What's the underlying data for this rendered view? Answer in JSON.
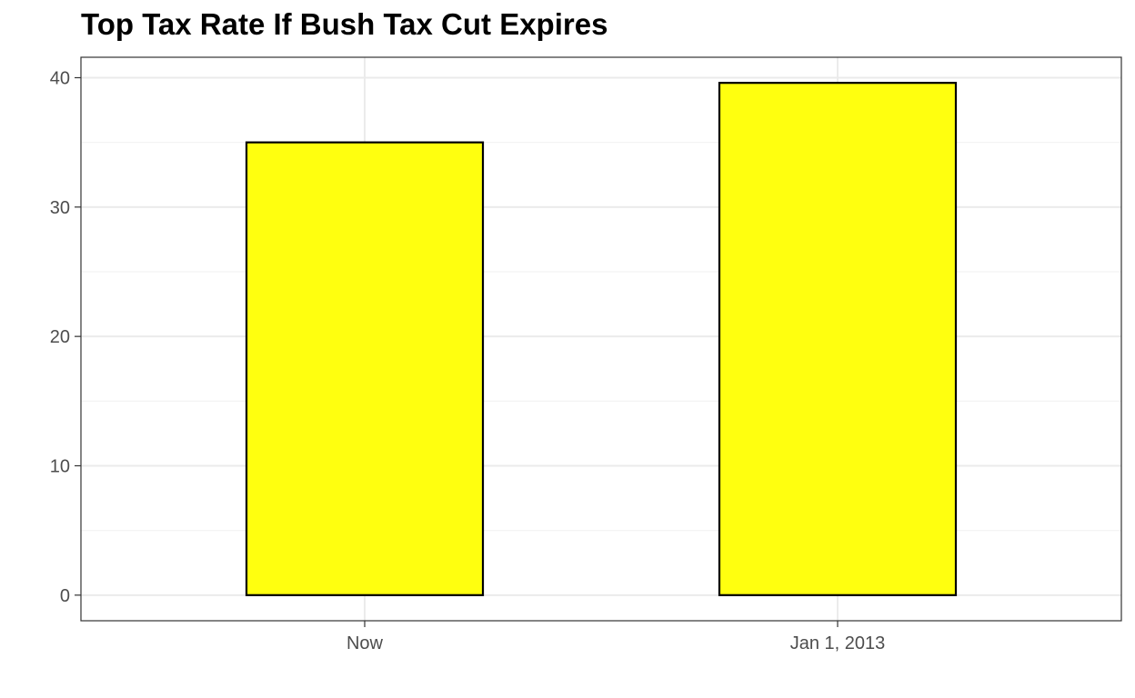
{
  "chart_data": {
    "type": "bar",
    "title": "Top Tax Rate If Bush Tax Cut Expires",
    "xlabel": "",
    "ylabel": "",
    "categories": [
      "Now",
      "Jan 1, 2013"
    ],
    "values": [
      35,
      39.6
    ],
    "ylim": [
      -1.98,
      41.58
    ],
    "yticks": [
      "0",
      "10",
      "20",
      "30",
      "40"
    ],
    "grid": true,
    "legend": "none",
    "colors": {
      "bar_fill": "#ffff0f",
      "bar_outline": "#000000",
      "grid_major": "#ebebeb",
      "grid_minor": "#f2f2f2",
      "panel_border": "#333333",
      "tick_text": "#4d4d4d"
    }
  }
}
